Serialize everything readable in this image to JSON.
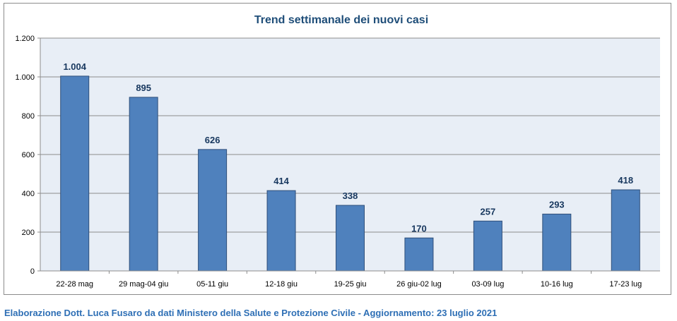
{
  "chart_data": {
    "type": "bar",
    "title": "Trend settimanale dei nuovi casi",
    "categories": [
      "22-28 mag",
      "29 mag-04 giu",
      "05-11 giu",
      "12-18 giu",
      "19-25 giu",
      "26 giu-02 lug",
      "03-09 lug",
      "10-16 lug",
      "17-23 lug"
    ],
    "values": [
      1004,
      895,
      626,
      414,
      338,
      170,
      257,
      293,
      418
    ],
    "value_labels": [
      "1.004",
      "895",
      "626",
      "414",
      "338",
      "170",
      "257",
      "293",
      "418"
    ],
    "ylim": [
      0,
      1200
    ],
    "yticks": [
      0,
      200,
      400,
      600,
      800,
      1000,
      1200
    ],
    "ytick_labels": [
      "0",
      "200",
      "400",
      "600",
      "800",
      "1.000",
      "1.200"
    ],
    "grid": true,
    "legend": "none",
    "colors": {
      "bar": "#4f81bd",
      "bar_edge": "#2f4f7a",
      "plot_bg": "#e8eef6",
      "title": "#1f4e79",
      "label": "#17375e"
    }
  },
  "footer": {
    "credit": "Elaborazione Dott. Luca Fusaro da dati Ministero della Salute e Protezione Civile - Aggiornamento: 23 luglio 2021"
  }
}
